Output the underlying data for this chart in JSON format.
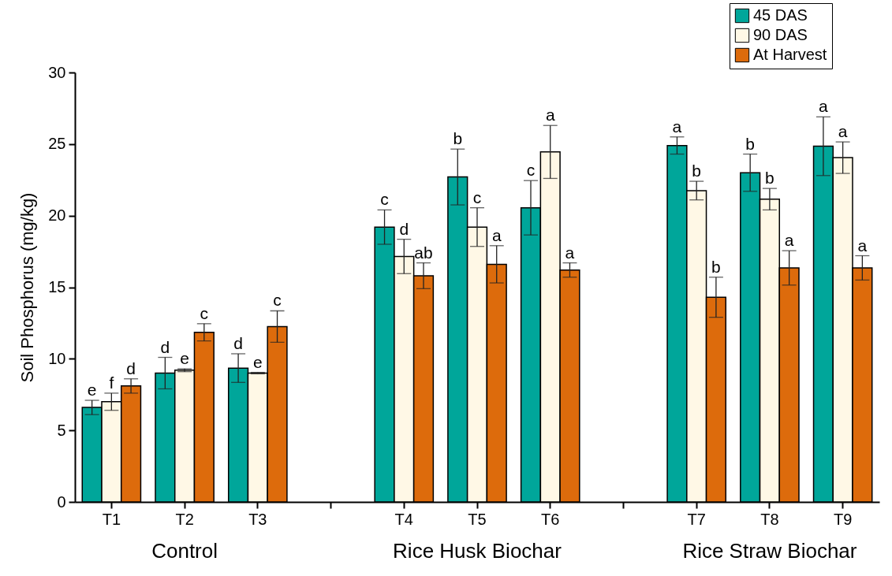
{
  "chart_data": {
    "type": "bar",
    "ylabel": "Soil Phosphorus (mg/kg)",
    "categories": [
      "T1",
      "T2",
      "T3",
      null,
      "T4",
      "T5",
      "T6",
      null,
      "T7",
      "T8",
      "T9"
    ],
    "series": [
      {
        "name": "45 DAS",
        "color": "#00a69a",
        "values": [
          6.6,
          9.0,
          9.35,
          null,
          19.2,
          22.7,
          20.55,
          null,
          24.9,
          23.0,
          24.85
        ],
        "errors": [
          0.5,
          1.1,
          1.0,
          null,
          1.2,
          1.95,
          1.9,
          null,
          0.6,
          1.3,
          2.05
        ],
        "value_labels": [
          "e",
          "d",
          "d",
          null,
          "c",
          "b",
          "c",
          null,
          "a",
          "b",
          "a"
        ]
      },
      {
        "name": "90 DAS",
        "color": "#fff8e6",
        "values": [
          7.0,
          9.2,
          9.0,
          null,
          17.15,
          19.2,
          24.45,
          null,
          21.75,
          21.15,
          24.05
        ],
        "errors": [
          0.6,
          0.1,
          0.05,
          null,
          1.2,
          1.35,
          1.85,
          null,
          0.65,
          0.75,
          1.1
        ],
        "value_labels": [
          "f",
          "e",
          "e",
          null,
          "d",
          "c",
          "a",
          null,
          "b",
          "b",
          "a"
        ]
      },
      {
        "name": "At Harvest",
        "color": "#dd6b0c",
        "values": [
          8.1,
          11.85,
          12.25,
          null,
          15.8,
          16.6,
          16.2,
          null,
          14.3,
          16.35,
          16.35
        ],
        "errors": [
          0.5,
          0.6,
          1.1,
          null,
          0.9,
          1.3,
          0.5,
          null,
          1.4,
          1.2,
          0.85
        ],
        "value_labels": [
          "d",
          "c",
          "c",
          null,
          "ab",
          "a",
          "a",
          null,
          "b",
          "a",
          "a"
        ]
      }
    ],
    "annotations": [
      "Control",
      "Rice Husk Biochar",
      "Rice Straw Biochar"
    ],
    "ylim": [
      0,
      30
    ],
    "yticks": [
      0,
      5,
      10,
      15,
      20,
      25,
      30
    ],
    "grid": false,
    "legend": "top right"
  }
}
